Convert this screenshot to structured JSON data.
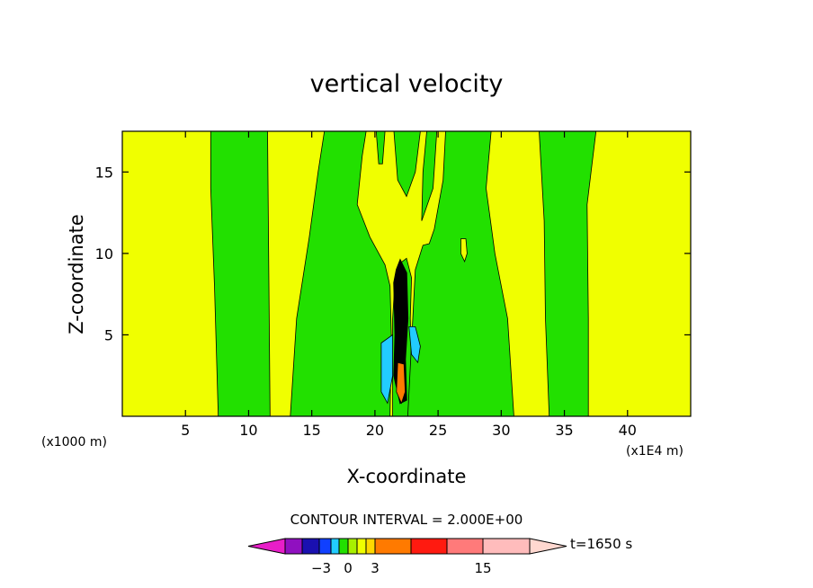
{
  "chart_data": {
    "type": "heatmap",
    "title": "vertical velocity",
    "xlabel": "X-coordinate",
    "ylabel": "Z-coordinate",
    "x_unit_label": "(x1000 m)",
    "y_unit_label": "(x1E4 m)",
    "xlim": [
      0,
      45
    ],
    "ylim": [
      0,
      17.5
    ],
    "x_ticks": [
      5,
      10,
      15,
      20,
      25,
      30,
      35,
      40
    ],
    "y_ticks": [
      5,
      10,
      15
    ],
    "contour_interval_text": "CONTOUR INTERVAL = 2.000E+00",
    "time_label": "t=1650 s",
    "colorbar_labels": [
      {
        "value": -3,
        "text": "−3"
      },
      {
        "value": 0,
        "text": "0"
      },
      {
        "value": 3,
        "text": "3"
      },
      {
        "value": 15,
        "text": "15"
      }
    ],
    "colors": {
      "yellow": "#f0ff00",
      "green": "#22e000",
      "cyan": "#22ccff",
      "black": "#000000",
      "orange": "#ff7a00"
    },
    "regions": [
      {
        "level": "green",
        "polygon": [
          [
            7.0,
            17.5
          ],
          [
            11.5,
            17.5
          ],
          [
            11.7,
            0
          ],
          [
            7.6,
            0
          ],
          [
            7.3,
            8
          ],
          [
            7.0,
            14
          ]
        ]
      },
      {
        "level": "green",
        "polygon": [
          [
            16.0,
            17.5
          ],
          [
            19.3,
            17.5
          ],
          [
            19.0,
            16
          ],
          [
            18.6,
            13
          ],
          [
            19.6,
            11
          ],
          [
            20.8,
            9.3
          ],
          [
            21.2,
            8
          ],
          [
            21.3,
            5
          ],
          [
            21.2,
            0
          ],
          [
            13.3,
            0
          ],
          [
            13.8,
            6
          ],
          [
            14.8,
            11
          ],
          [
            15.5,
            15
          ]
        ]
      },
      {
        "level": "green",
        "polygon": [
          [
            21.4,
            0
          ],
          [
            21.4,
            3
          ],
          [
            21.4,
            6
          ],
          [
            21.6,
            8.5
          ],
          [
            22.0,
            9.4
          ],
          [
            22.5,
            9.7
          ],
          [
            22.9,
            8.5
          ],
          [
            22.8,
            6
          ],
          [
            22.9,
            3
          ],
          [
            23.1,
            0
          ]
        ]
      },
      {
        "level": "green",
        "polygon": [
          [
            22.6,
            0
          ],
          [
            23.0,
            6
          ],
          [
            23.2,
            9
          ],
          [
            23.8,
            10.5
          ],
          [
            24.3,
            10.6
          ],
          [
            24.7,
            11.5
          ],
          [
            25.4,
            14.5
          ],
          [
            25.6,
            17.5
          ],
          [
            29.2,
            17.5
          ],
          [
            28.8,
            14
          ],
          [
            29.5,
            10
          ],
          [
            30.5,
            6
          ],
          [
            31.0,
            0
          ]
        ]
      },
      {
        "level": "green",
        "polygon": [
          [
            20.1,
            17.5
          ],
          [
            20.8,
            17.5
          ],
          [
            20.6,
            15.5
          ],
          [
            20.3,
            15.5
          ]
        ]
      },
      {
        "level": "green",
        "polygon": [
          [
            21.5,
            17.5
          ],
          [
            23.6,
            17.5
          ],
          [
            23.2,
            15
          ],
          [
            22.5,
            13.5
          ],
          [
            21.8,
            14.5
          ]
        ]
      },
      {
        "level": "green",
        "polygon": [
          [
            24.1,
            17.5
          ],
          [
            24.9,
            17.5
          ],
          [
            24.6,
            14
          ],
          [
            23.7,
            12
          ],
          [
            23.8,
            15
          ]
        ]
      },
      {
        "level": "green",
        "polygon": [
          [
            33.0,
            17.5
          ],
          [
            37.5,
            17.5
          ],
          [
            36.8,
            13
          ],
          [
            36.9,
            6
          ],
          [
            36.9,
            0
          ],
          [
            33.8,
            0
          ],
          [
            33.5,
            6
          ],
          [
            33.4,
            12
          ]
        ]
      },
      {
        "level": "yellow",
        "polygon": [
          [
            26.8,
            10.9
          ],
          [
            27.2,
            10.9
          ],
          [
            27.3,
            10
          ],
          [
            27.1,
            9.5
          ],
          [
            26.8,
            10.0
          ]
        ]
      },
      {
        "level": "cyan",
        "polygon": [
          [
            20.5,
            4.5
          ],
          [
            21.4,
            5
          ],
          [
            21.4,
            2.5
          ],
          [
            21.0,
            0.8
          ],
          [
            20.5,
            1.5
          ]
        ]
      },
      {
        "level": "cyan",
        "polygon": [
          [
            22.7,
            5.5
          ],
          [
            23.2,
            5.5
          ],
          [
            23.6,
            4.3
          ],
          [
            23.4,
            3.3
          ],
          [
            22.9,
            3.8
          ]
        ]
      },
      {
        "level": "black",
        "polygon": [
          [
            21.5,
            8.2
          ],
          [
            21.7,
            9.0
          ],
          [
            22.0,
            9.6
          ],
          [
            22.5,
            8.8
          ],
          [
            22.6,
            6
          ],
          [
            22.4,
            3.5
          ],
          [
            22.5,
            1.0
          ],
          [
            22.0,
            0.8
          ],
          [
            21.5,
            2.5
          ],
          [
            21.6,
            5
          ]
        ]
      },
      {
        "level": "orange",
        "polygon": [
          [
            21.8,
            3.3
          ],
          [
            22.3,
            3.2
          ],
          [
            22.4,
            1.5
          ],
          [
            22.1,
            0.8
          ],
          [
            21.7,
            1.5
          ]
        ]
      }
    ]
  }
}
